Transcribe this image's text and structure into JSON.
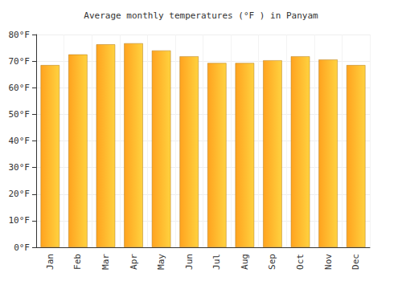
{
  "chart_data": {
    "type": "bar",
    "title": "Average monthly temperatures (°F ) in Panyam",
    "categories": [
      "Jan",
      "Feb",
      "Mar",
      "Apr",
      "May",
      "Jun",
      "Jul",
      "Aug",
      "Sep",
      "Oct",
      "Nov",
      "Dec"
    ],
    "values": [
      68.5,
      72.5,
      76.3,
      76.7,
      74.0,
      71.8,
      69.3,
      69.3,
      70.3,
      71.8,
      70.6,
      68.5
    ],
    "color": "#ffa31f",
    "ylim": [
      0,
      80
    ],
    "yticks": [
      {
        "value": 0,
        "label": "0°F"
      },
      {
        "value": 10,
        "label": "10°F"
      },
      {
        "value": 20,
        "label": "20°F"
      },
      {
        "value": 30,
        "label": "30°F"
      },
      {
        "value": 40,
        "label": "40°F"
      },
      {
        "value": 50,
        "label": "50°F"
      },
      {
        "value": 60,
        "label": "60°F"
      },
      {
        "value": 70,
        "label": "70°F"
      },
      {
        "value": 80,
        "label": "80°F"
      }
    ],
    "grid": true
  }
}
